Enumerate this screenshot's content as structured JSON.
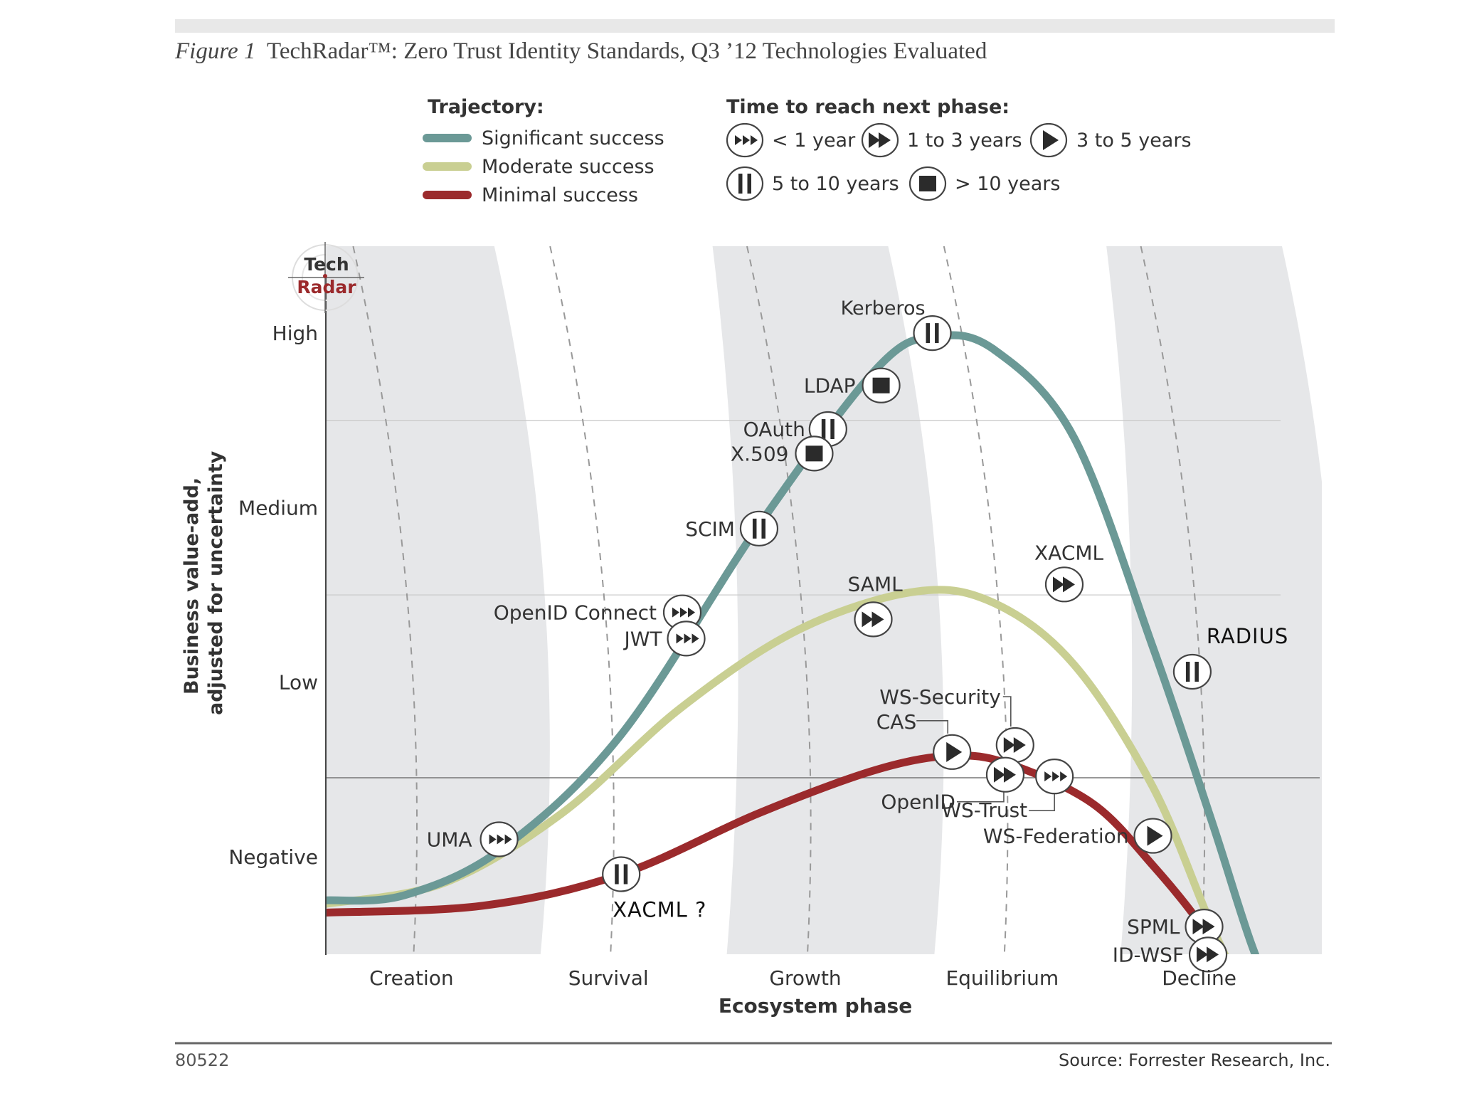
{
  "figure": {
    "label": "Figure 1",
    "title": "TechRadar™: Zero Trust Identity Standards, Q3 ’12 Technologies Evaluated",
    "id": "80522",
    "source": "Source: Forrester Research, Inc."
  },
  "logo": {
    "line1": "Tech",
    "line2": "Radar"
  },
  "legend": {
    "trajectory_title": "Trajectory:",
    "trajectories": [
      {
        "key": "significant",
        "label": "Significant success",
        "color": "#6b9996"
      },
      {
        "key": "moderate",
        "label": "Moderate success",
        "color": "#c9cf92"
      },
      {
        "key": "minimal",
        "label": "Minimal success",
        "color": "#9b2a2c"
      }
    ],
    "time_title": "Time to reach next phase:",
    "times": [
      {
        "icon": "triple-arrow",
        "label": "< 1 year"
      },
      {
        "icon": "double-arrow",
        "label": "1 to 3 years"
      },
      {
        "icon": "single-arrow",
        "label": "3 to 5 years"
      },
      {
        "icon": "pause",
        "label": "5 to 10 years"
      },
      {
        "icon": "stop",
        "label": "> 10 years"
      }
    ]
  },
  "chart_data": {
    "type": "line",
    "title": "TechRadar: Zero Trust Identity Standards, Q3 '12 Technologies Evaluated",
    "xlabel": "Ecosystem phase",
    "ylabel": "Business value-add, adjusted for uncertainty",
    "x_categories": [
      "Creation",
      "Survival",
      "Growth",
      "Equilibrium",
      "Decline"
    ],
    "y_categories": [
      "Negative",
      "Low",
      "Medium",
      "High"
    ],
    "xlim": [
      0,
      5
    ],
    "ylim": [
      -0.6,
      3.4
    ],
    "grid": "horizontal",
    "series": [
      {
        "name": "Significant success",
        "key": "significant",
        "color": "#6b9996",
        "points": [
          [
            0,
            -0.25
          ],
          [
            0.4,
            -0.22
          ],
          [
            0.9,
            0.05
          ],
          [
            1.5,
            0.7
          ],
          [
            2.2,
            1.9
          ],
          [
            2.8,
            2.8
          ],
          [
            3.1,
            2.98
          ],
          [
            3.4,
            2.9
          ],
          [
            3.8,
            2.4
          ],
          [
            4.2,
            1.2
          ],
          [
            4.5,
            0.2
          ],
          [
            4.7,
            -0.5
          ],
          [
            4.88,
            -1.0
          ]
        ]
      },
      {
        "name": "Moderate success",
        "key": "moderate",
        "color": "#c9cf92",
        "points": [
          [
            0,
            -0.27
          ],
          [
            0.6,
            -0.15
          ],
          [
            1.2,
            0.25
          ],
          [
            1.8,
            0.85
          ],
          [
            2.4,
            1.3
          ],
          [
            3.0,
            1.52
          ],
          [
            3.4,
            1.45
          ],
          [
            3.8,
            1.1
          ],
          [
            4.2,
            0.4
          ],
          [
            4.5,
            -0.4
          ],
          [
            4.75,
            -1.0
          ]
        ]
      },
      {
        "name": "Minimal success",
        "key": "minimal",
        "color": "#9b2a2c",
        "points": [
          [
            0,
            -0.32
          ],
          [
            0.8,
            -0.28
          ],
          [
            1.5,
            -0.1
          ],
          [
            2.2,
            0.25
          ],
          [
            2.8,
            0.5
          ],
          [
            3.2,
            0.58
          ],
          [
            3.5,
            0.52
          ],
          [
            3.9,
            0.3
          ],
          [
            4.2,
            -0.05
          ],
          [
            4.45,
            -0.4
          ],
          [
            4.6,
            -0.7
          ],
          [
            4.75,
            -1.0
          ]
        ]
      }
    ],
    "technologies": [
      {
        "name": "Kerberos",
        "trajectory": "significant",
        "time": "5 to 10 years",
        "icon": "pause",
        "x": 3.08,
        "y": 3.0
      },
      {
        "name": "LDAP",
        "trajectory": "significant",
        "time": "> 10 years",
        "icon": "stop",
        "x": 2.82,
        "y": 2.7
      },
      {
        "name": "OAuth",
        "trajectory": "significant",
        "time": "5 to 10 years",
        "icon": "pause",
        "x": 2.55,
        "y": 2.45
      },
      {
        "name": "X.509",
        "trajectory": "significant",
        "time": "> 10 years",
        "icon": "stop",
        "x": 2.48,
        "y": 2.31
      },
      {
        "name": "SCIM",
        "trajectory": "significant",
        "time": "5 to 10 years",
        "icon": "pause",
        "x": 2.2,
        "y": 1.88
      },
      {
        "name": "OpenID Connect",
        "trajectory": "significant",
        "time": "< 1 year",
        "icon": "triple-arrow",
        "x": 1.81,
        "y": 1.4
      },
      {
        "name": "JWT",
        "trajectory": "significant",
        "time": "< 1 year",
        "icon": "triple-arrow",
        "x": 1.83,
        "y": 1.25
      },
      {
        "name": "UMA",
        "trajectory": "significant",
        "time": "< 1 year",
        "icon": "triple-arrow",
        "x": 0.88,
        "y": 0.1
      },
      {
        "name": "RADIUS",
        "trajectory": "significant",
        "time": "5 to 10 years",
        "icon": "pause",
        "x": 4.4,
        "y": 1.06
      },
      {
        "name": "SAML",
        "trajectory": "moderate",
        "time": "1 to 3 years",
        "icon": "double-arrow",
        "x": 2.78,
        "y": 1.36
      },
      {
        "name": "XACML",
        "trajectory": "moderate",
        "time": "1 to 3 years",
        "icon": "double-arrow",
        "x": 3.75,
        "y": 1.56
      },
      {
        "name": "XACML ?",
        "trajectory": "minimal",
        "time": "5 to 10 years",
        "icon": "pause",
        "x": 1.5,
        "y": -0.1
      },
      {
        "name": "CAS",
        "trajectory": "minimal",
        "time": "3 to 5 years",
        "icon": "single-arrow",
        "x": 3.18,
        "y": 0.6
      },
      {
        "name": "WS-Security",
        "trajectory": "minimal",
        "time": "1 to 3 years",
        "icon": "double-arrow",
        "x": 3.5,
        "y": 0.64
      },
      {
        "name": "OpenID",
        "trajectory": "minimal",
        "time": "1 to 3 years",
        "icon": "double-arrow",
        "x": 3.45,
        "y": 0.47
      },
      {
        "name": "WS-Trust",
        "trajectory": "minimal",
        "time": "< 1 year",
        "icon": "triple-arrow",
        "x": 3.7,
        "y": 0.46
      },
      {
        "name": "WS-Federation",
        "trajectory": "minimal",
        "time": "3 to 5 years",
        "icon": "single-arrow",
        "x": 4.2,
        "y": 0.12
      },
      {
        "name": "SPML",
        "trajectory": "minimal",
        "time": "1 to 3 years",
        "icon": "double-arrow",
        "x": 4.46,
        "y": -0.4
      },
      {
        "name": "ID-WSF",
        "trajectory": "minimal",
        "time": "1 to 3 years",
        "icon": "double-arrow",
        "x": 4.48,
        "y": -0.56
      }
    ]
  }
}
